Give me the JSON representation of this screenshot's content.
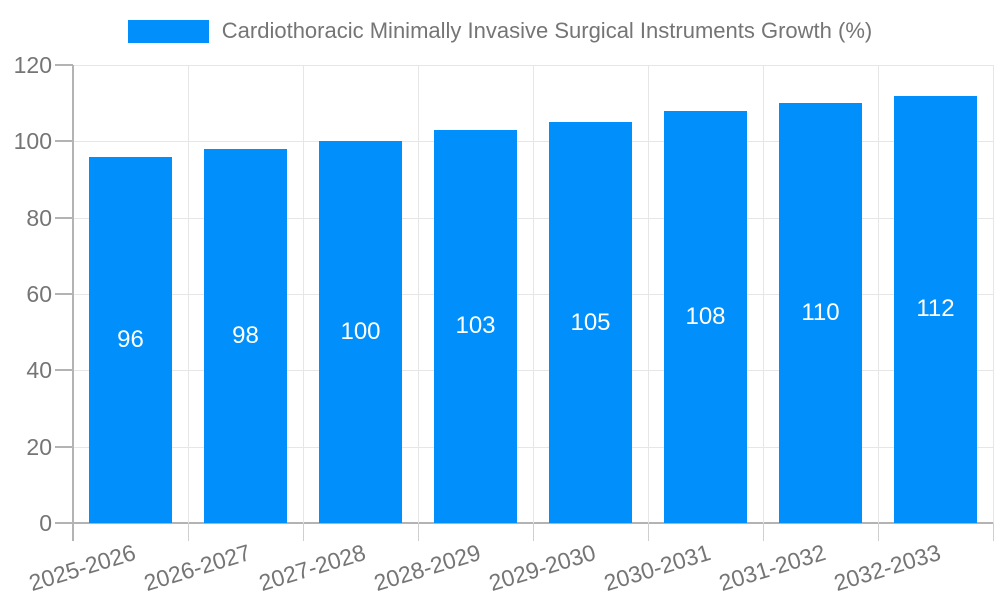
{
  "chart_data": {
    "type": "bar",
    "title": "Cardiothoracic Minimally Invasive Surgical Instruments Growth (%)",
    "legend_position": "top",
    "categories": [
      "2025-2026",
      "2026-2027",
      "2027-2028",
      "2028-2029",
      "2029-2030",
      "2030-2031",
      "2031-2032",
      "2032-2033"
    ],
    "series": [
      {
        "name": "Cardiothoracic Minimally Invasive Surgical Instruments Growth (%)",
        "values": [
          96,
          98,
          100,
          103,
          105,
          108,
          110,
          112
        ]
      }
    ],
    "value_labels_shown": true,
    "xlabel": "",
    "ylabel": "",
    "ylim": [
      0,
      120
    ],
    "yticks": [
      0,
      20,
      40,
      60,
      80,
      100,
      120
    ],
    "grid": true,
    "colors": {
      "bar": "#008FFB",
      "axis_line": "#b3b3b3",
      "gridline": "#e6e6e6",
      "minor_tick": "#cfcfcf",
      "axis_text": "#757575",
      "value_label_text": "#ffffff",
      "background": "#ffffff"
    }
  }
}
